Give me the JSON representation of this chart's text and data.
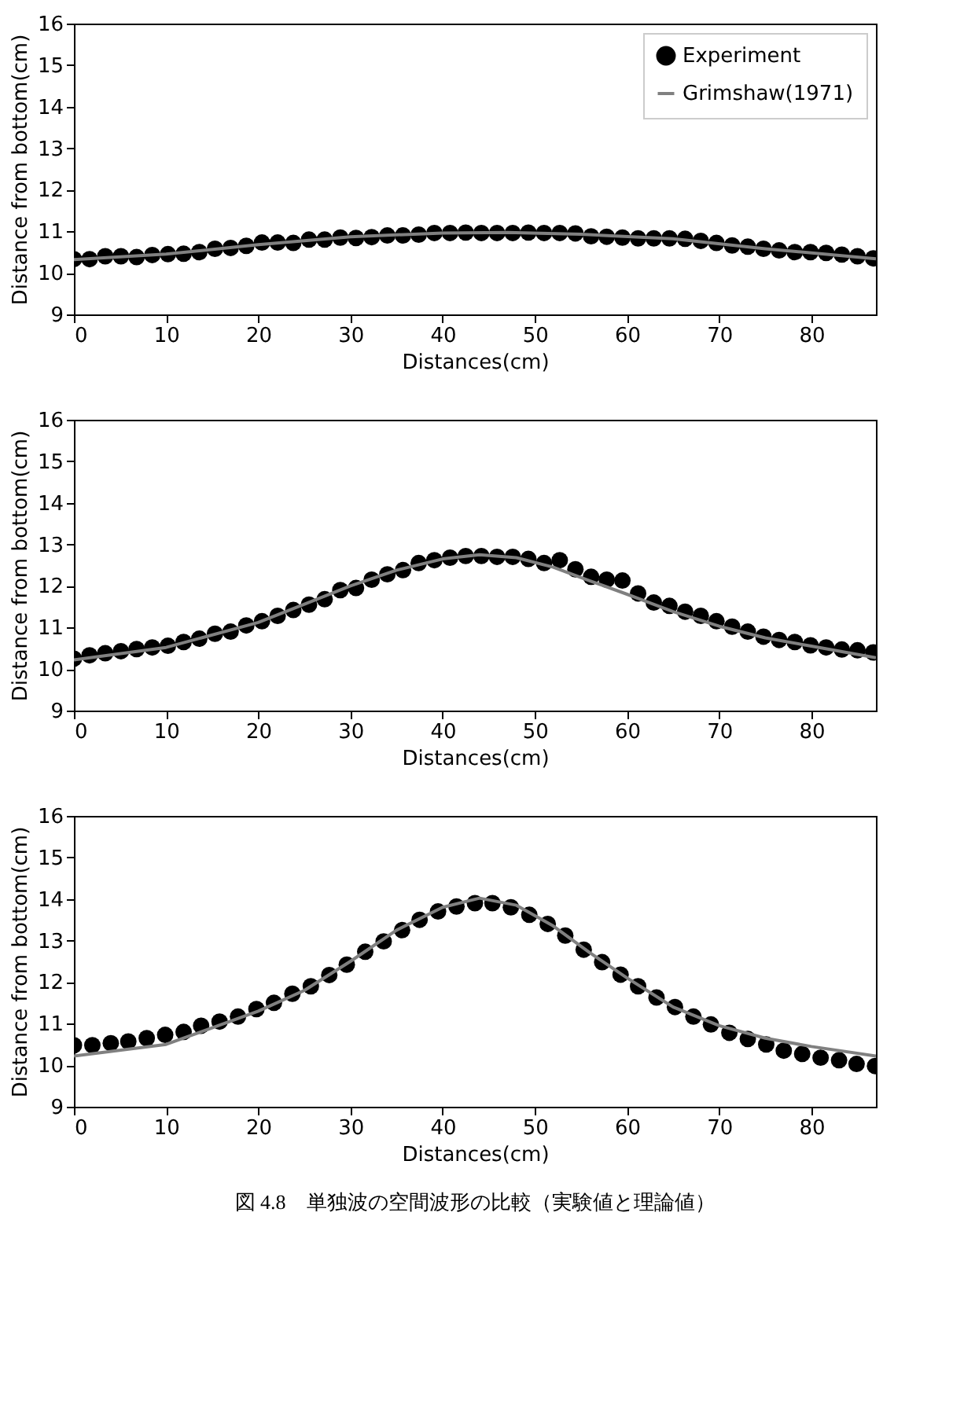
{
  "chart_data": [
    {
      "type": "scatter",
      "xlabel": "Distances(cm)",
      "ylabel": "Distance from bottom(cm)",
      "xlim": [
        0,
        87
      ],
      "ylim": [
        9,
        16
      ],
      "xticks": [
        0,
        10,
        20,
        30,
        40,
        50,
        60,
        70,
        80
      ],
      "yticks": [
        9,
        10,
        11,
        12,
        13,
        14,
        15,
        16
      ],
      "legend": "top right",
      "series": [
        {
          "name": "Experiment",
          "marker": "circle",
          "color": "#000000",
          "x": [
            0,
            1.7,
            3.4,
            5.1,
            6.8,
            8.5,
            10.2,
            11.9,
            13.6,
            15.3,
            17,
            18.7,
            20.4,
            22.1,
            23.8,
            25.5,
            27.2,
            28.9,
            30.6,
            32.3,
            34,
            35.7,
            37.4,
            39.1,
            40.8,
            42.5,
            44.2,
            45.9,
            47.6,
            49.3,
            51,
            52.7,
            54.4,
            56.1,
            57.8,
            59.5,
            61.2,
            62.9,
            64.6,
            66.3,
            68,
            69.7,
            71.4,
            73.1,
            74.8,
            76.5,
            78.2,
            79.9,
            81.6,
            83.3,
            85,
            86.7
          ],
          "values": [
            10.33,
            10.33,
            10.4,
            10.4,
            10.38,
            10.43,
            10.45,
            10.46,
            10.5,
            10.58,
            10.6,
            10.65,
            10.73,
            10.73,
            10.72,
            10.8,
            10.8,
            10.85,
            10.84,
            10.86,
            10.9,
            10.9,
            10.92,
            10.96,
            10.96,
            10.97,
            10.96,
            10.96,
            10.96,
            10.97,
            10.96,
            10.96,
            10.95,
            10.88,
            10.87,
            10.85,
            10.83,
            10.83,
            10.83,
            10.82,
            10.77,
            10.72,
            10.66,
            10.63,
            10.58,
            10.54,
            10.5,
            10.5,
            10.48,
            10.44,
            10.4,
            10.35
          ]
        },
        {
          "name": "Grimshaw(1971)",
          "type": "line",
          "line_style": "solid",
          "color": "#808080",
          "x": [
            0,
            10,
            20,
            30,
            40,
            47,
            55,
            65,
            75,
            87
          ],
          "values": [
            10.32,
            10.45,
            10.68,
            10.87,
            10.96,
            10.97,
            10.93,
            10.82,
            10.58,
            10.34
          ]
        }
      ]
    },
    {
      "type": "scatter",
      "xlabel": "Distances(cm)",
      "ylabel": "Distance from bottom(cm)",
      "xlim": [
        0,
        87
      ],
      "ylim": [
        9,
        16
      ],
      "xticks": [
        0,
        10,
        20,
        30,
        40,
        50,
        60,
        70,
        80
      ],
      "yticks": [
        9,
        10,
        11,
        12,
        13,
        14,
        15,
        16
      ],
      "legend": "top right",
      "series": [
        {
          "name": "Experiment",
          "marker": "circle",
          "color": "#000000",
          "x": [
            0,
            1.7,
            3.4,
            5.1,
            6.8,
            8.5,
            10.2,
            11.9,
            13.6,
            15.3,
            17,
            18.7,
            20.4,
            22.1,
            23.8,
            25.5,
            27.2,
            28.9,
            30.6,
            32.3,
            34,
            35.7,
            37.4,
            39.1,
            40.8,
            42.5,
            44.2,
            45.9,
            47.6,
            49.3,
            51,
            52.7,
            54.4,
            56.1,
            57.8,
            59.5,
            61.2,
            62.9,
            64.6,
            66.3,
            68,
            69.7,
            71.4,
            73.1,
            74.8,
            76.5,
            78.2,
            79.9,
            81.6,
            83.3,
            85,
            86.7
          ],
          "values": [
            10.25,
            10.33,
            10.38,
            10.43,
            10.48,
            10.52,
            10.56,
            10.65,
            10.73,
            10.85,
            10.9,
            11.05,
            11.15,
            11.28,
            11.42,
            11.55,
            11.68,
            11.9,
            11.95,
            12.15,
            12.28,
            12.38,
            12.55,
            12.62,
            12.68,
            12.72,
            12.72,
            12.7,
            12.7,
            12.65,
            12.55,
            12.62,
            12.4,
            12.22,
            12.15,
            12.13,
            11.82,
            11.6,
            11.52,
            11.38,
            11.28,
            11.15,
            11.02,
            10.9,
            10.78,
            10.7,
            10.65,
            10.57,
            10.52,
            10.47,
            10.45,
            10.4
          ]
        },
        {
          "name": "Grimshaw(1971)",
          "type": "line",
          "line_style": "solid",
          "color": "#808080",
          "x": [
            0,
            10,
            20,
            30,
            35,
            40,
            44,
            48,
            52,
            56,
            60,
            65,
            70,
            75,
            80,
            87
          ],
          "values": [
            10.22,
            10.52,
            11.12,
            12.0,
            12.38,
            12.65,
            12.75,
            12.68,
            12.45,
            12.12,
            11.8,
            11.38,
            11.03,
            10.75,
            10.55,
            10.27
          ]
        }
      ]
    },
    {
      "type": "scatter",
      "xlabel": "Distances(cm)",
      "ylabel": "Distance from bottom(cm)",
      "xlim": [
        0,
        87
      ],
      "ylim": [
        9,
        16
      ],
      "xticks": [
        0,
        10,
        20,
        30,
        40,
        50,
        60,
        70,
        80
      ],
      "yticks": [
        9,
        10,
        11,
        12,
        13,
        14,
        15,
        16
      ],
      "legend": "top right",
      "annotations": [
        "図 4.8　単独波の空間波形の比較（実験値と理論値）"
      ],
      "series": [
        {
          "name": "Experiment",
          "marker": "circle",
          "color": "#000000",
          "x": [
            0,
            2,
            4,
            5.9,
            7.9,
            9.9,
            11.9,
            13.8,
            15.8,
            17.8,
            19.8,
            21.7,
            23.7,
            25.7,
            27.7,
            29.6,
            31.6,
            33.6,
            35.6,
            37.5,
            39.5,
            41.5,
            43.5,
            45.4,
            47.4,
            49.4,
            51.4,
            53.3,
            55.3,
            57.3,
            59.3,
            61.2,
            63.2,
            65.2,
            67.2,
            69.1,
            71.1,
            73.1,
            75.1,
            77,
            79,
            81,
            83,
            84.9,
            86.9
          ],
          "values": [
            10.48,
            10.48,
            10.53,
            10.57,
            10.65,
            10.73,
            10.8,
            10.95,
            11.05,
            11.17,
            11.35,
            11.5,
            11.72,
            11.9,
            12.17,
            12.42,
            12.73,
            12.98,
            13.25,
            13.5,
            13.7,
            13.82,
            13.9,
            13.9,
            13.8,
            13.62,
            13.4,
            13.12,
            12.78,
            12.48,
            12.18,
            11.9,
            11.63,
            11.4,
            11.17,
            10.98,
            10.78,
            10.63,
            10.5,
            10.35,
            10.27,
            10.18,
            10.12,
            10.03,
            9.98
          ]
        },
        {
          "name": "Grimshaw(1971)",
          "type": "line",
          "line_style": "solid",
          "color": "#808080",
          "x": [
            0,
            10,
            20,
            25,
            30,
            35,
            40,
            44,
            48,
            52,
            56,
            60,
            65,
            70,
            75,
            80,
            87
          ],
          "values": [
            10.22,
            10.5,
            11.3,
            11.8,
            12.5,
            13.25,
            13.8,
            14.02,
            13.85,
            13.35,
            12.7,
            12.1,
            11.4,
            10.95,
            10.65,
            10.45,
            10.22
          ]
        }
      ]
    }
  ]
}
